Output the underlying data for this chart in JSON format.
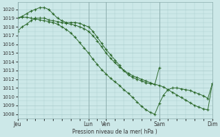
{
  "bg_color": "#cce8e8",
  "grid_color": "#aacccc",
  "line_color": "#2d6a2d",
  "xlabel": "Pression niveau de la mer( hPa )",
  "ylim": [
    1007.5,
    1020.8
  ],
  "yticks": [
    1008,
    1009,
    1010,
    1011,
    1012,
    1013,
    1014,
    1015,
    1016,
    1017,
    1018,
    1019,
    1020
  ],
  "xtick_labels": [
    "Jeu",
    "Lun",
    "Ven",
    "Sam",
    "Dim"
  ],
  "xtick_positions": [
    0,
    48,
    60,
    96,
    132
  ],
  "total_hours": 132,
  "line1_x": [
    0,
    3,
    6,
    9,
    12,
    15,
    18,
    21,
    24,
    27,
    30,
    33,
    36,
    39,
    42,
    45,
    48,
    51,
    54,
    57,
    60,
    63,
    66,
    69,
    72,
    75,
    78,
    81,
    84,
    87,
    90,
    93,
    96,
    99,
    102,
    105,
    108,
    111,
    114,
    117,
    120,
    123,
    126,
    129,
    132
  ],
  "line1_y": [
    1017.5,
    1018.0,
    1018.3,
    1018.7,
    1019.0,
    1019.0,
    1019.0,
    1018.8,
    1018.7,
    1018.6,
    1018.5,
    1018.4,
    1018.3,
    1018.2,
    1018.0,
    1017.8,
    1017.5,
    1017.0,
    1016.4,
    1015.7,
    1015.0,
    1014.4,
    1013.9,
    1013.4,
    1013.0,
    1012.7,
    1012.4,
    1012.2,
    1012.0,
    1011.8,
    1011.6,
    1011.4,
    1011.3,
    1011.1,
    1010.8,
    1010.5,
    1010.2,
    1009.9,
    1009.6,
    1009.3,
    1009.0,
    1008.8,
    1008.6,
    1008.5,
    1011.5
  ],
  "line2_x": [
    0,
    3,
    6,
    9,
    12,
    15,
    18,
    21,
    24,
    27,
    30,
    33,
    36,
    39,
    42,
    45,
    48,
    51,
    54,
    57,
    60,
    63,
    66,
    69,
    72,
    75,
    78,
    81,
    84,
    87,
    90,
    93,
    96
  ],
  "line2_y": [
    1019.0,
    1019.2,
    1019.5,
    1019.8,
    1020.0,
    1020.2,
    1020.2,
    1020.0,
    1019.5,
    1019.0,
    1018.7,
    1018.5,
    1018.5,
    1018.5,
    1018.4,
    1018.2,
    1018.0,
    1017.5,
    1016.8,
    1016.1,
    1015.4,
    1014.8,
    1014.2,
    1013.6,
    1013.0,
    1012.5,
    1012.2,
    1012.0,
    1011.8,
    1011.6,
    1011.5,
    1011.4,
    1013.3
  ],
  "line3_x": [
    0,
    3,
    6,
    9,
    12,
    15,
    18,
    21,
    24,
    27,
    30,
    33,
    36,
    39,
    42,
    45,
    48,
    51,
    54,
    57,
    60,
    63,
    66,
    69,
    72,
    75,
    78,
    81,
    84,
    87,
    90,
    93,
    96,
    99,
    102,
    105,
    108,
    111,
    114,
    117,
    120,
    123,
    126,
    129,
    132
  ],
  "line3_y": [
    1019.0,
    1019.1,
    1019.1,
    1019.0,
    1018.9,
    1018.8,
    1018.7,
    1018.6,
    1018.5,
    1018.3,
    1018.0,
    1017.7,
    1017.3,
    1016.8,
    1016.2,
    1015.6,
    1015.0,
    1014.3,
    1013.7,
    1013.1,
    1012.6,
    1012.1,
    1011.7,
    1011.3,
    1010.8,
    1010.4,
    1009.9,
    1009.4,
    1008.9,
    1008.5,
    1008.2,
    1008.0,
    1009.2,
    1010.2,
    1010.8,
    1011.0,
    1011.0,
    1010.9,
    1010.8,
    1010.7,
    1010.5,
    1010.3,
    1010.1,
    1009.8,
    1011.5
  ]
}
